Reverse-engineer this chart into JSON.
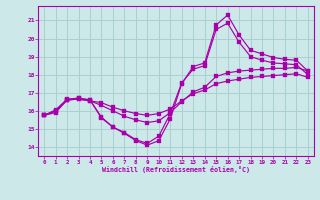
{
  "xlabel": "Windchill (Refroidissement éolien,°C)",
  "background_color": "#cce8e8",
  "grid_color": "#aad0d0",
  "line_color": "#aa00aa",
  "xlim": [
    -0.5,
    23.5
  ],
  "ylim": [
    13.5,
    21.8
  ],
  "yticks": [
    14,
    15,
    16,
    17,
    18,
    19,
    20,
    21
  ],
  "xticks": [
    0,
    1,
    2,
    3,
    4,
    5,
    6,
    7,
    8,
    9,
    10,
    11,
    12,
    13,
    14,
    15,
    16,
    17,
    18,
    19,
    20,
    21,
    22,
    23
  ],
  "curve1_x": [
    0,
    1,
    2,
    3,
    4,
    5,
    6,
    7,
    8,
    9,
    10,
    11,
    12,
    13,
    14,
    15,
    16,
    17,
    18,
    19,
    20,
    21,
    22,
    23
  ],
  "curve1_y": [
    15.75,
    15.9,
    16.6,
    16.7,
    16.6,
    15.6,
    15.1,
    14.75,
    14.35,
    14.1,
    14.35,
    15.55,
    17.5,
    18.45,
    18.65,
    20.75,
    21.3,
    20.2,
    19.35,
    19.15,
    18.95,
    18.85,
    18.8,
    18.2
  ],
  "curve2_x": [
    0,
    1,
    2,
    3,
    4,
    5,
    6,
    7,
    8,
    9,
    10,
    11,
    12,
    13,
    14,
    15,
    16,
    17,
    18,
    19,
    20,
    21,
    22,
    23
  ],
  "curve2_y": [
    15.75,
    16.05,
    16.65,
    16.7,
    16.6,
    15.65,
    15.1,
    14.8,
    14.4,
    14.2,
    14.6,
    15.85,
    17.55,
    18.3,
    18.5,
    20.5,
    20.85,
    19.8,
    19.0,
    18.8,
    18.65,
    18.6,
    18.55,
    18.0
  ],
  "curve3_x": [
    0,
    1,
    2,
    3,
    4,
    5,
    6,
    7,
    8,
    9,
    10,
    11,
    12,
    13,
    14,
    15,
    16,
    17,
    18,
    19,
    20,
    21,
    22,
    23
  ],
  "curve3_y": [
    15.75,
    16.0,
    16.6,
    16.65,
    16.55,
    16.3,
    16.0,
    15.7,
    15.5,
    15.35,
    15.45,
    15.9,
    16.5,
    17.05,
    17.3,
    17.9,
    18.1,
    18.2,
    18.25,
    18.3,
    18.35,
    18.35,
    18.4,
    18.2
  ],
  "curve4_x": [
    0,
    1,
    2,
    3,
    4,
    5,
    6,
    7,
    8,
    9,
    10,
    11,
    12,
    13,
    14,
    15,
    16,
    17,
    18,
    19,
    20,
    21,
    22,
    23
  ],
  "curve4_y": [
    15.75,
    16.0,
    16.6,
    16.65,
    16.55,
    16.45,
    16.2,
    16.0,
    15.85,
    15.75,
    15.85,
    16.1,
    16.55,
    16.95,
    17.15,
    17.5,
    17.65,
    17.75,
    17.85,
    17.9,
    17.95,
    18.0,
    18.05,
    17.85
  ]
}
